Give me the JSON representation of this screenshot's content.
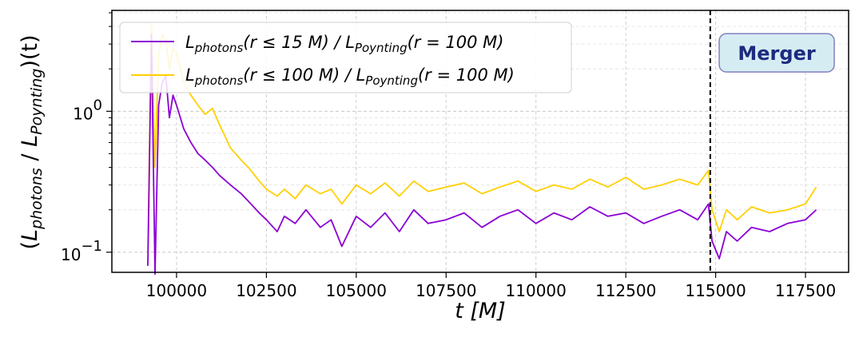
{
  "chart_data": {
    "type": "line",
    "title": "",
    "xlabel": "t [M]",
    "ylabel": "(L_photons / L_Poynting)(t)",
    "yscale": "log",
    "xlim": [
      98200,
      118700
    ],
    "ylim": [
      0.072,
      5.2
    ],
    "grid": true,
    "legend_position": "top-left",
    "x_ticks": [
      100000,
      102500,
      105000,
      107500,
      110000,
      112500,
      115000,
      117500
    ],
    "x_tick_labels": [
      "100000",
      "102500",
      "105000",
      "107500",
      "110000",
      "112500",
      "115000",
      "117500"
    ],
    "y_ticks": [
      {
        "value": 1.0,
        "base": "10",
        "exp": "0"
      },
      {
        "value": 0.1,
        "base": "10",
        "exp": "−1"
      }
    ],
    "series": [
      {
        "name": "L_photons(r ≤ 15 M) / L_Poynting(r = 100 M)",
        "color": "#8b00d4",
        "x": [
          99200,
          99300,
          99400,
          99500,
          99600,
          99700,
          99800,
          99900,
          100000,
          100200,
          100400,
          100600,
          100800,
          101000,
          101200,
          101500,
          101800,
          102000,
          102300,
          102500,
          102800,
          103000,
          103300,
          103600,
          104000,
          104300,
          104600,
          105000,
          105400,
          105800,
          106200,
          106600,
          107000,
          107500,
          108000,
          108500,
          109000,
          109500,
          110000,
          110500,
          111000,
          111500,
          112000,
          112500,
          113000,
          113500,
          114000,
          114500,
          114800,
          114900,
          115100,
          115300,
          115600,
          116000,
          116500,
          117000,
          117500,
          117800
        ],
        "values": [
          0.08,
          3.5,
          0.07,
          1.1,
          1.6,
          1.8,
          0.9,
          1.3,
          1.1,
          0.75,
          0.6,
          0.5,
          0.45,
          0.4,
          0.35,
          0.3,
          0.26,
          0.23,
          0.19,
          0.17,
          0.14,
          0.18,
          0.16,
          0.2,
          0.15,
          0.17,
          0.11,
          0.18,
          0.15,
          0.19,
          0.14,
          0.2,
          0.16,
          0.17,
          0.19,
          0.15,
          0.18,
          0.2,
          0.16,
          0.19,
          0.17,
          0.21,
          0.18,
          0.19,
          0.16,
          0.18,
          0.2,
          0.17,
          0.22,
          0.12,
          0.09,
          0.14,
          0.12,
          0.15,
          0.14,
          0.16,
          0.17,
          0.2
        ]
      },
      {
        "name": "L_photons(r ≤ 100 M) / L_Poynting(r = 100 M)",
        "color": "#ffd000",
        "x": [
          99200,
          99300,
          99400,
          99500,
          99600,
          99700,
          99800,
          99900,
          100000,
          100200,
          100400,
          100600,
          100800,
          101000,
          101200,
          101500,
          101800,
          102000,
          102300,
          102500,
          102800,
          103000,
          103300,
          103600,
          104000,
          104300,
          104600,
          105000,
          105400,
          105800,
          106200,
          106600,
          107000,
          107500,
          108000,
          108500,
          109000,
          109500,
          110000,
          110500,
          111000,
          111500,
          112000,
          112500,
          113000,
          113500,
          114000,
          114500,
          114800,
          114900,
          115100,
          115300,
          115600,
          116000,
          116500,
          117000,
          117500,
          117800
        ],
        "values": [
          0.1,
          4.2,
          0.4,
          2.5,
          3.5,
          3.2,
          2.0,
          2.8,
          2.6,
          1.6,
          1.3,
          1.1,
          0.95,
          1.05,
          0.8,
          0.55,
          0.45,
          0.4,
          0.32,
          0.28,
          0.25,
          0.28,
          0.24,
          0.3,
          0.26,
          0.28,
          0.22,
          0.3,
          0.26,
          0.31,
          0.25,
          0.32,
          0.27,
          0.29,
          0.31,
          0.26,
          0.29,
          0.32,
          0.27,
          0.3,
          0.28,
          0.33,
          0.29,
          0.34,
          0.28,
          0.3,
          0.33,
          0.3,
          0.38,
          0.2,
          0.14,
          0.2,
          0.17,
          0.21,
          0.19,
          0.2,
          0.22,
          0.29
        ]
      }
    ],
    "vline": {
      "x": 114850,
      "style": "dashed",
      "color": "#000000"
    },
    "annotation": {
      "text": "Merger",
      "x": 116700,
      "y": 2.6,
      "box_color": "#d6ecf3",
      "text_color": "#1c2a80",
      "border_color": "#8080c0"
    },
    "legend": {
      "entries": [
        {
          "series": 0,
          "name_main": "L",
          "name_sub": "photons",
          "range_text": "(r ≤ 15 M) / ",
          "denominator": "L",
          "denominator_sub": "Poynting",
          "denominator_range": "(r = 100 M)"
        },
        {
          "series": 1,
          "name_main": "L",
          "name_sub": "photons",
          "range_text": "(r ≤ 100 M) / ",
          "denominator": "L",
          "denominator_sub": "Poynting",
          "denominator_range": "(r = 100 M)"
        }
      ]
    },
    "ylabel_parts": {
      "open": "(",
      "l1": "L",
      "s1": "photons",
      "slash": " / ",
      "l2": "L",
      "s2": "Poynting",
      "close": ")(t)"
    }
  }
}
